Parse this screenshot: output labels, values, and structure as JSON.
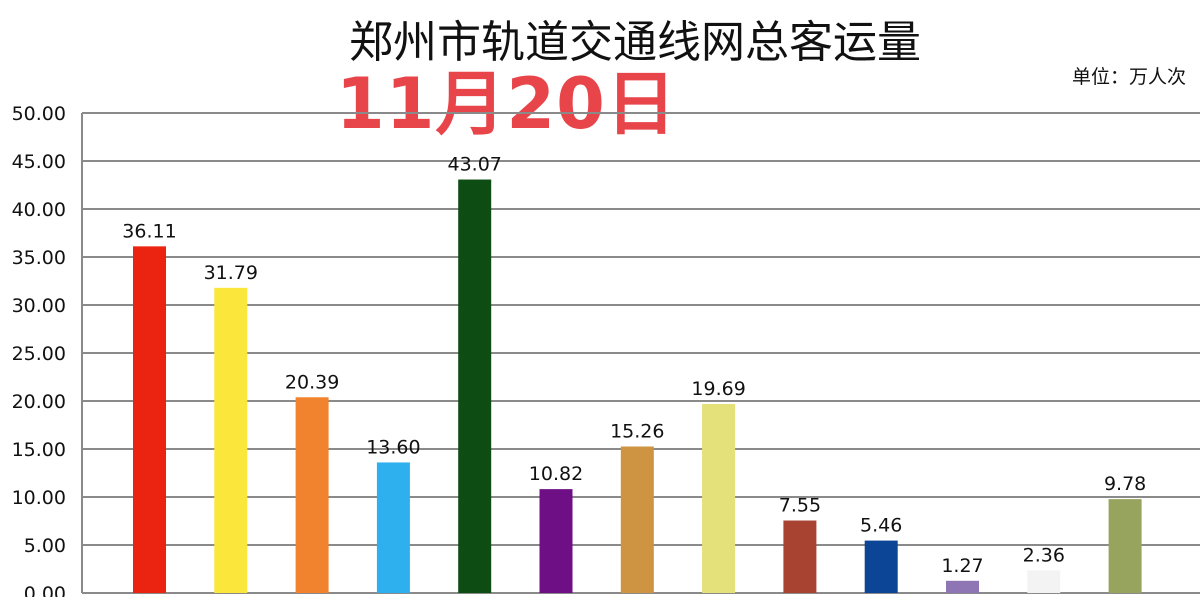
{
  "chart_data": {
    "type": "bar",
    "title": "郑州市轨道交通线网总客运量",
    "date_label": "11月20日",
    "unit_label": "单位：万人次",
    "ylim": [
      0,
      50
    ],
    "yticks": [
      "0.00",
      "5.00",
      "10.00",
      "15.00",
      "20.00",
      "25.00",
      "30.00",
      "35.00",
      "40.00",
      "45.00",
      "50.00"
    ],
    "grid": true,
    "values": [
      36.11,
      31.79,
      20.39,
      13.6,
      43.07,
      10.82,
      15.26,
      19.69,
      7.55,
      5.46,
      1.27,
      2.36,
      9.78
    ],
    "labels": [
      "36.11",
      "31.79",
      "20.39",
      "13.60",
      "43.07",
      "10.82",
      "15.26",
      "19.69",
      "7.55",
      "5.46",
      "1.27",
      "2.36",
      "9.78"
    ],
    "colors": [
      "#ea2410",
      "#fbe63c",
      "#f2832e",
      "#2fb0ee",
      "#0d4d14",
      "#6e0f86",
      "#cf9441",
      "#e4e07a",
      "#a84332",
      "#0c4596",
      "#8e76b4",
      "#f3f3f3",
      "#97a45e"
    ]
  }
}
